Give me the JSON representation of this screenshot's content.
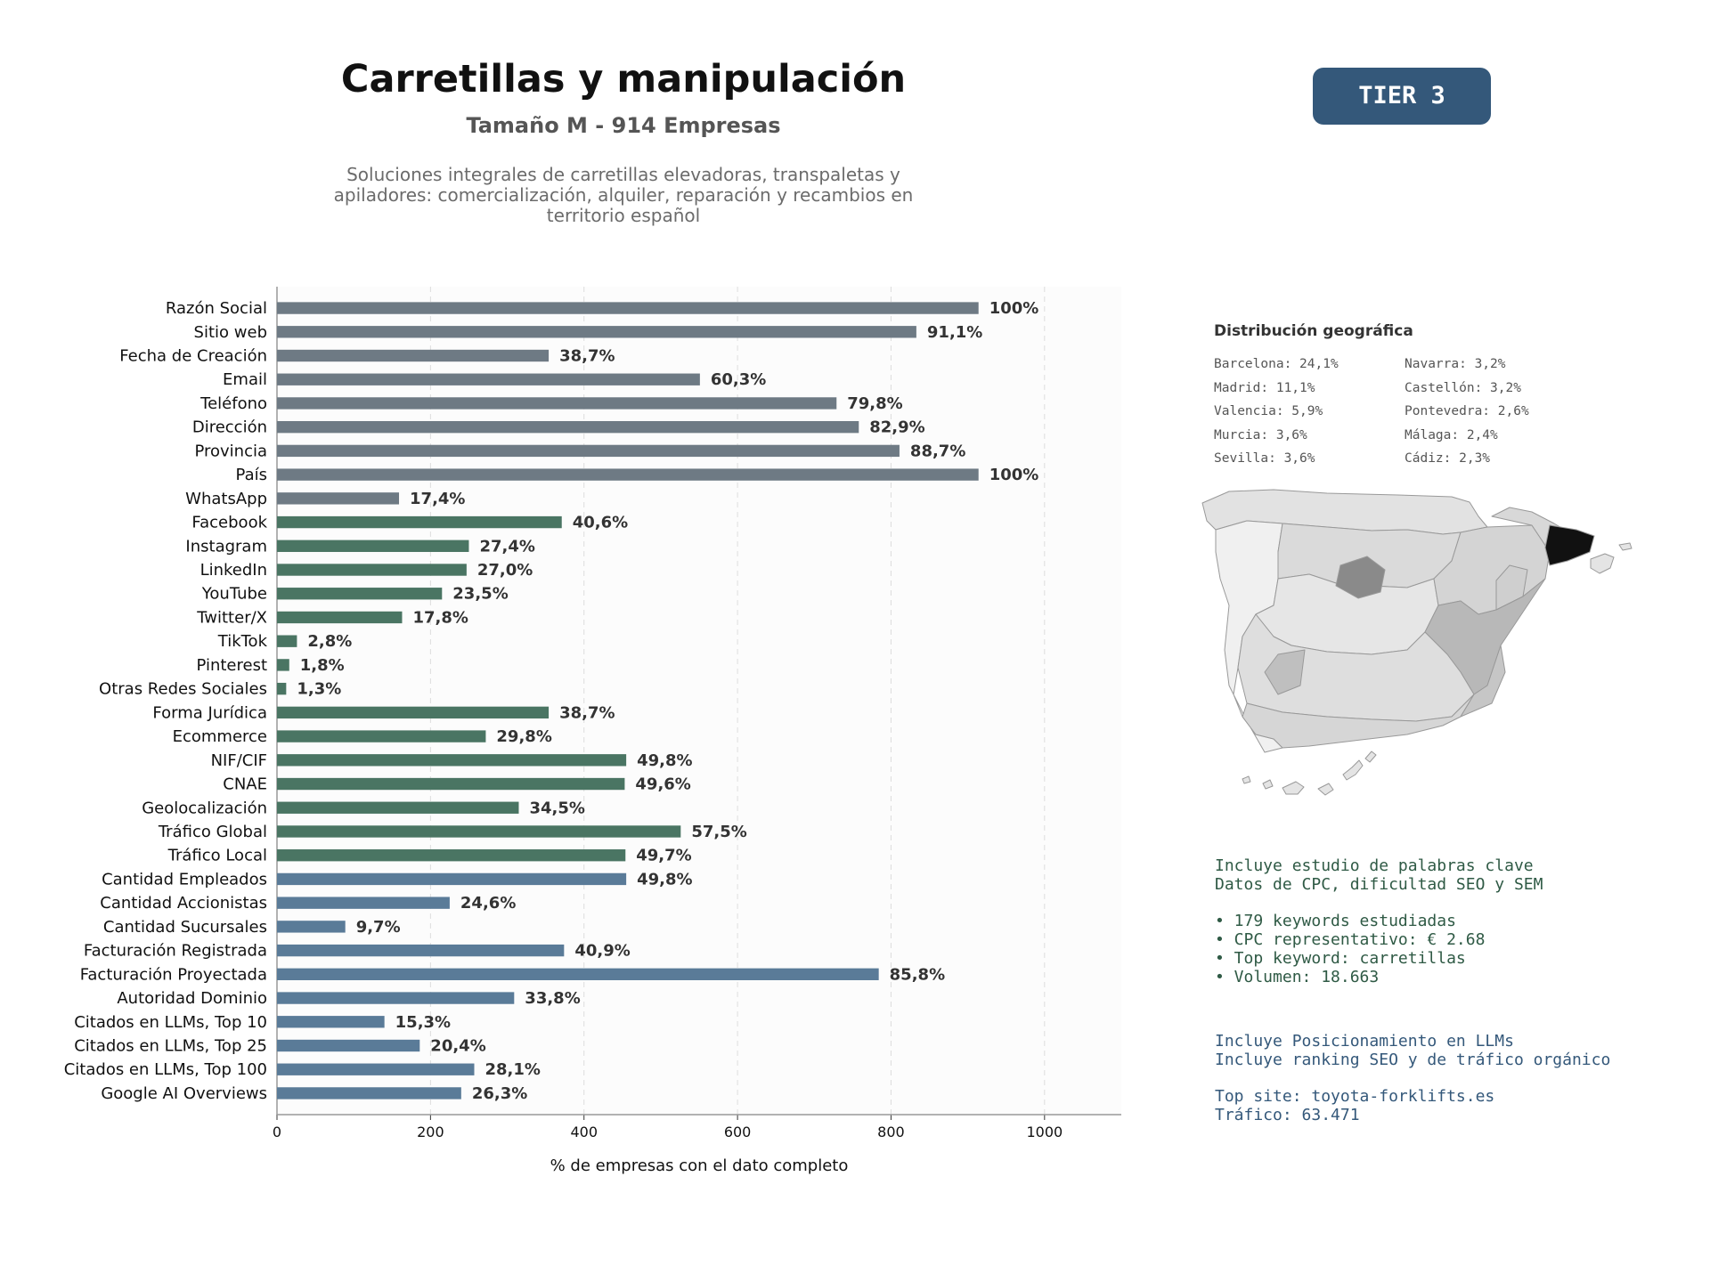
{
  "header": {
    "title": "Carretillas y manipulación",
    "subtitle": "Tamaño M - 914 Empresas",
    "description": "Soluciones integrales de carretillas elevadoras, transpaletas y apiladores: comercialización, alquiler, reparación y recambios en territorio español",
    "tier_badge": "TIER 3"
  },
  "colors": {
    "contact": "#6e7a84",
    "social": "#4a7563",
    "business": "#5a7b98",
    "badge": "#34587a",
    "seo_text": "#2f5a45",
    "llm_text": "#34587a"
  },
  "chart_data": {
    "type": "bar",
    "orientation": "horizontal",
    "title": "",
    "xlabel": "% de empresas con el dato completo",
    "ylabel": "",
    "xlim": [
      0,
      1100
    ],
    "xticks": [
      0,
      200,
      400,
      600,
      800,
      1000
    ],
    "grid": "vertical dashed",
    "categories": [
      "Razón Social",
      "Sitio web",
      "Fecha de Creación",
      "Email",
      "Teléfono",
      "Dirección",
      "Provincia",
      "País",
      "WhatsApp",
      "Facebook",
      "Instagram",
      "LinkedIn",
      "YouTube",
      "Twitter/X",
      "TikTok",
      "Pinterest",
      "Otras Redes Sociales",
      "Forma Jurídica",
      "Ecommerce",
      "NIF/CIF",
      "CNAE",
      "Geolocalización",
      "Tráfico Global",
      "Tráfico Local",
      "Cantidad Empleados",
      "Cantidad Accionistas",
      "Cantidad Sucursales",
      "Facturación Registrada",
      "Facturación Proyectada",
      "Autoridad Dominio",
      "Citados en LLMs, Top 10",
      "Citados en LLMs, Top 25",
      "Citados en LLMs, Top 100",
      "Google AI Overviews"
    ],
    "values": [
      914,
      833,
      354,
      551,
      729,
      758,
      811,
      914,
      159,
      371,
      250,
      247,
      215,
      163,
      26,
      16,
      12,
      354,
      272,
      455,
      453,
      315,
      526,
      454,
      455,
      225,
      89,
      374,
      784,
      309,
      140,
      186,
      257,
      240
    ],
    "labels": [
      "100%",
      "91,1%",
      "38,7%",
      "60,3%",
      "79,8%",
      "82,9%",
      "88,7%",
      "100%",
      "17,4%",
      "40,6%",
      "27,4%",
      "27,0%",
      "23,5%",
      "17,8%",
      "2,8%",
      "1,8%",
      "1,3%",
      "38,7%",
      "29,8%",
      "49,8%",
      "49,6%",
      "34,5%",
      "57,5%",
      "49,7%",
      "49,8%",
      "24,6%",
      "9,7%",
      "40,9%",
      "85,8%",
      "33,8%",
      "15,3%",
      "20,4%",
      "28,1%",
      "26,3%"
    ],
    "groups": [
      "contact",
      "contact",
      "contact",
      "contact",
      "contact",
      "contact",
      "contact",
      "contact",
      "contact",
      "social",
      "social",
      "social",
      "social",
      "social",
      "social",
      "social",
      "social",
      "social",
      "social",
      "social",
      "social",
      "social",
      "social",
      "social",
      "business",
      "business",
      "business",
      "business",
      "business",
      "business",
      "business",
      "business",
      "business",
      "business"
    ]
  },
  "geo": {
    "title": "Distribución geográfica",
    "col1": [
      "Barcelona: 24,1%",
      "Madrid: 11,1%",
      "Valencia: 5,9%",
      "Murcia: 3,6%",
      "Sevilla: 3,6%"
    ],
    "col2": [
      "Navarra: 3,2%",
      "Castellón: 3,2%",
      "Pontevedra: 2,6%",
      "Málaga: 2,4%",
      "Cádiz: 2,3%"
    ]
  },
  "seo": {
    "line1": "Incluye estudio de palabras clave",
    "line2": "Datos de CPC, dificultad SEO y SEM",
    "bullet1": "• 179 keywords estudiadas",
    "bullet2": "• CPC representativo: € 2.68",
    "bullet3": "• Top keyword: carretillas",
    "bullet4": "• Volumen: 18.663"
  },
  "llm": {
    "line1": "Incluye Posicionamiento en LLMs",
    "line2": "Incluye ranking SEO y de tráfico orgánico",
    "line3": "Top site: toyota-forklifts.es",
    "line4": "Tráfico: 63.471"
  }
}
